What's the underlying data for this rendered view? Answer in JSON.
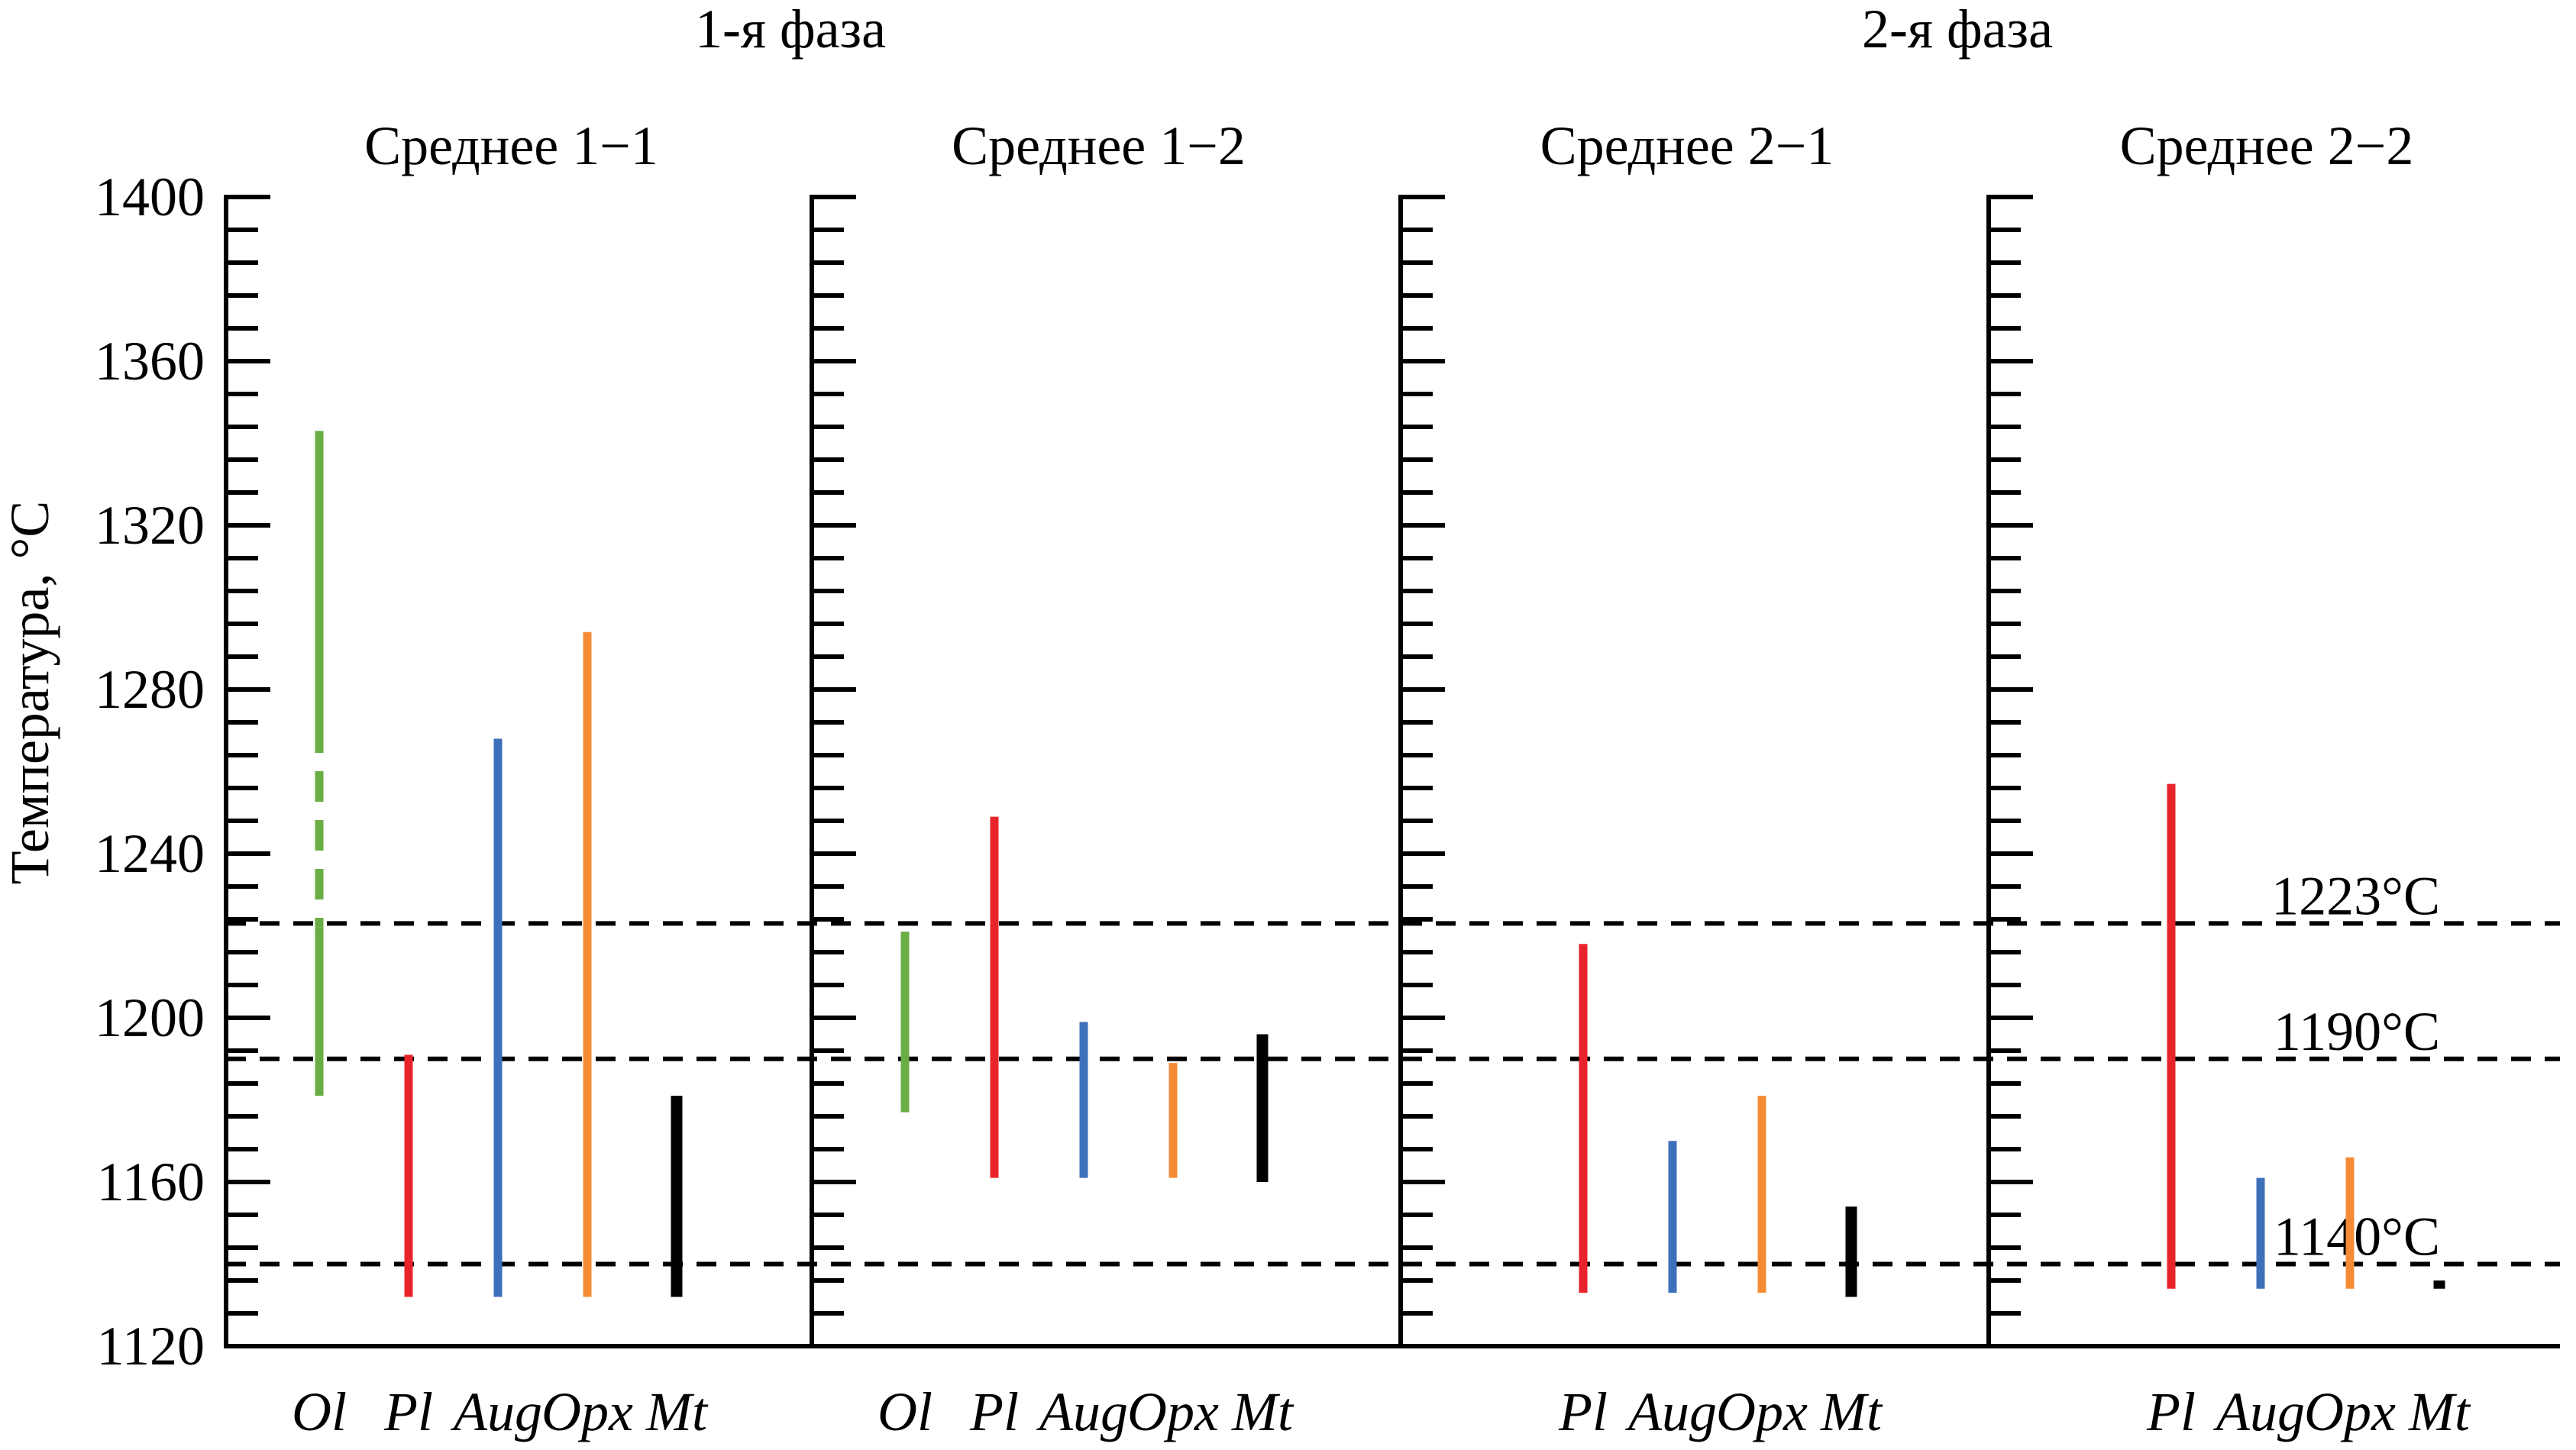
{
  "chart_data": {
    "type": "range-bar",
    "y_axis": {
      "label": "Температура, °C",
      "min": 1120,
      "max": 1400,
      "ticks": [
        1120,
        1160,
        1200,
        1240,
        1280,
        1320,
        1360,
        1400
      ],
      "minor_step": 8
    },
    "phases": [
      {
        "label": "1-я фаза",
        "panels": [
          0,
          1
        ]
      },
      {
        "label": "2-я фаза",
        "panels": [
          2,
          3
        ]
      }
    ],
    "reference_lines": [
      {
        "value": 1223,
        "label": "1223°C"
      },
      {
        "value": 1190,
        "label": "1190°C"
      },
      {
        "value": 1140,
        "label": "1140°C"
      }
    ],
    "colors": {
      "Ol": "#6aad45",
      "Pl": "#e8242b",
      "Aug": "#3e6fba",
      "Opx": "#f58c35",
      "Mt": "#000000",
      "dashed": "#000000",
      "axis": "#000000"
    },
    "panels": [
      {
        "title": "Среднее 1−1",
        "bars": [
          {
            "mineral": "Ol",
            "low": 1181,
            "high": 1343,
            "dashed_from": 1222,
            "dashed_to": 1272
          },
          {
            "mineral": "Pl",
            "low": 1132,
            "high": 1191
          },
          {
            "mineral": "Aug",
            "low": 1132,
            "high": 1268
          },
          {
            "mineral": "Opx",
            "low": 1132,
            "high": 1294
          },
          {
            "mineral": "Mt",
            "low": 1132,
            "high": 1181
          }
        ]
      },
      {
        "title": "Среднее 1−2",
        "bars": [
          {
            "mineral": "Ol",
            "low": 1177,
            "high": 1221
          },
          {
            "mineral": "Pl",
            "low": 1161,
            "high": 1249
          },
          {
            "mineral": "Aug",
            "low": 1161,
            "high": 1199
          },
          {
            "mineral": "Opx",
            "low": 1161,
            "high": 1189
          },
          {
            "mineral": "Mt",
            "low": 1160,
            "high": 1196
          }
        ]
      },
      {
        "title": "Среднее 2−1",
        "bars": [
          {
            "mineral": "Pl",
            "low": 1133,
            "high": 1218
          },
          {
            "mineral": "Aug",
            "low": 1133,
            "high": 1170
          },
          {
            "mineral": "Opx",
            "low": 1133,
            "high": 1181
          },
          {
            "mineral": "Mt",
            "low": 1132,
            "high": 1154
          }
        ]
      },
      {
        "title": "Среднее 2−2",
        "bars": [
          {
            "mineral": "Pl",
            "low": 1134,
            "high": 1257
          },
          {
            "mineral": "Aug",
            "low": 1134,
            "high": 1161
          },
          {
            "mineral": "Opx",
            "low": 1134,
            "high": 1166
          },
          {
            "mineral": "Mt",
            "low": 1134,
            "high": 1136
          }
        ]
      }
    ]
  }
}
